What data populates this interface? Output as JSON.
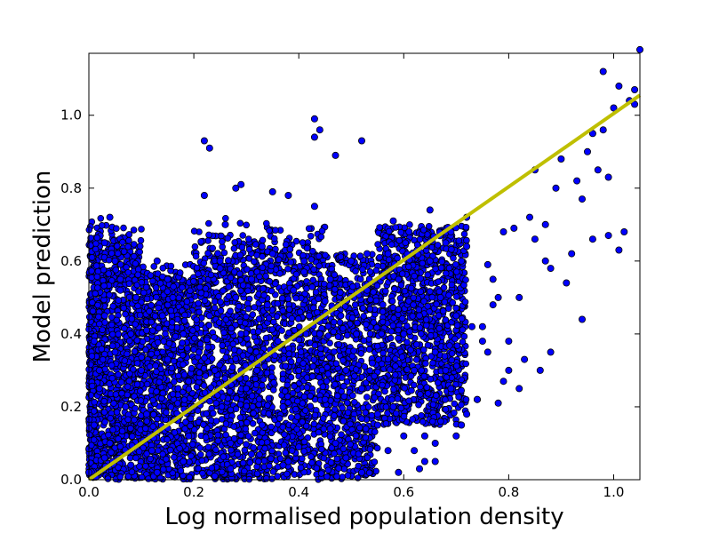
{
  "chart_data": {
    "type": "scatter",
    "title": "",
    "xlabel": "Log normalised population density",
    "ylabel": "Model prediction",
    "xlim": [
      0.0,
      1.05
    ],
    "ylim": [
      0.0,
      1.17
    ],
    "xticks": [
      "0.0",
      "0.2",
      "0.4",
      "0.6",
      "0.8",
      "1.0"
    ],
    "yticks": [
      "0.0",
      "0.2",
      "0.4",
      "0.6",
      "0.8",
      "1.0"
    ],
    "grid": false,
    "legend": "none",
    "series": [
      {
        "kind": "points",
        "color": "#0000ff",
        "edge_color": "#000000",
        "x": [
          0.0,
          0.01,
          0.02,
          0.03,
          0.05,
          0.04,
          0.06,
          0.08,
          0.02,
          0.04,
          0.03,
          0.07,
          0.05,
          0.09,
          0.12,
          0.1,
          0.14,
          0.15,
          0.11,
          0.17,
          0.18,
          0.13,
          0.19,
          0.16,
          0.21,
          0.22,
          0.2,
          0.23,
          0.25,
          0.24,
          0.27,
          0.28,
          0.26,
          0.3,
          0.29,
          0.31,
          0.33,
          0.32,
          0.34,
          0.35,
          0.37,
          0.36,
          0.39,
          0.38,
          0.4,
          0.42,
          0.41,
          0.43,
          0.45,
          0.44,
          0.46,
          0.47,
          0.49,
          0.48,
          0.5,
          0.52,
          0.51,
          0.53,
          0.55,
          0.54,
          0.56,
          0.57,
          0.58,
          0.6,
          0.59,
          0.61,
          0.62,
          0.63,
          0.65,
          0.64,
          0.66,
          0.67,
          0.68,
          0.69,
          0.7,
          0.71,
          0.72,
          0.74,
          0.75,
          0.77,
          0.79,
          0.8,
          0.82,
          0.84,
          0.85,
          0.87,
          0.89,
          0.9,
          0.93,
          0.95,
          0.97,
          0.98,
          1.0,
          1.01,
          1.03,
          1.04,
          0.22,
          0.23,
          0.43,
          0.43,
          0.44,
          0.52,
          0.47,
          0.29,
          0.28,
          0.38,
          0.35,
          0.94,
          0.96,
          0.99,
          0.98,
          1.02,
          1.04,
          1.05,
          0.66,
          0.59,
          0.62,
          0.7,
          0.72,
          0.78,
          0.82,
          0.86,
          0.91,
          0.88,
          0.94,
          0.96,
          0.99,
          1.01,
          0.75,
          0.8,
          0.83,
          0.85,
          0.88,
          0.92,
          0.77,
          0.79,
          0.76,
          0.78,
          0.73,
          0.74,
          0.68,
          0.71,
          0.66,
          0.64,
          0.63,
          0.6,
          0.57,
          0.55,
          0.52,
          0.49,
          0.46,
          0.4,
          0.37,
          0.31,
          0.27,
          0.24,
          0.18,
          0.13,
          0.08,
          0.03,
          0.01,
          0.06,
          0.11,
          0.15,
          0.19,
          0.25,
          0.33,
          0.41,
          0.45,
          0.53,
          0.58,
          0.65,
          0.69,
          0.72,
          0.76,
          0.81,
          0.87
        ],
        "y": [
          0.02,
          0.15,
          0.3,
          0.45,
          0.6,
          0.72,
          0.55,
          0.4,
          0.25,
          0.1,
          0.65,
          0.2,
          0.35,
          0.5,
          0.08,
          0.3,
          0.45,
          0.55,
          0.18,
          0.25,
          0.4,
          0.6,
          0.12,
          0.5,
          0.35,
          0.78,
          0.2,
          0.45,
          0.6,
          0.3,
          0.1,
          0.5,
          0.7,
          0.25,
          0.4,
          0.55,
          0.15,
          0.3,
          0.48,
          0.62,
          0.2,
          0.38,
          0.52,
          0.05,
          0.3,
          0.45,
          0.6,
          0.75,
          0.22,
          0.4,
          0.55,
          0.1,
          0.3,
          0.45,
          0.6,
          0.25,
          0.4,
          0.52,
          0.15,
          0.32,
          0.48,
          0.62,
          0.2,
          0.4,
          0.55,
          0.68,
          0.3,
          0.45,
          0.6,
          0.12,
          0.35,
          0.5,
          0.65,
          0.25,
          0.45,
          0.6,
          0.72,
          0.22,
          0.38,
          0.55,
          0.68,
          0.3,
          0.5,
          0.72,
          0.85,
          0.6,
          0.8,
          0.88,
          0.82,
          0.9,
          0.85,
          0.96,
          1.02,
          1.08,
          1.04,
          1.07,
          0.93,
          0.91,
          0.94,
          0.99,
          0.96,
          0.93,
          0.89,
          0.81,
          0.8,
          0.78,
          0.79,
          0.44,
          0.66,
          0.67,
          1.12,
          0.68,
          1.03,
          1.18,
          0.05,
          0.02,
          0.08,
          0.12,
          0.18,
          0.21,
          0.25,
          0.3,
          0.54,
          0.58,
          0.77,
          0.95,
          0.83,
          0.63,
          0.42,
          0.38,
          0.33,
          0.66,
          0.35,
          0.62,
          0.48,
          0.27,
          0.35,
          0.5,
          0.42,
          0.22,
          0.3,
          0.15,
          0.1,
          0.05,
          0.03,
          0.12,
          0.08,
          0.18,
          0.02,
          0.06,
          0.14,
          0.09,
          0.04,
          0.07,
          0.03,
          0.01,
          0.05,
          0.02,
          0.04,
          0.06,
          0.38,
          0.52,
          0.41,
          0.33,
          0.27,
          0.58,
          0.64,
          0.57,
          0.49,
          0.62,
          0.71,
          0.74,
          0.68,
          0.64,
          0.59,
          0.69,
          0.7
        ]
      },
      {
        "kind": "fit-line",
        "color": "#bfbf00",
        "x": [
          0.0,
          1.05
        ],
        "y": [
          0.0,
          1.055
        ]
      }
    ]
  }
}
